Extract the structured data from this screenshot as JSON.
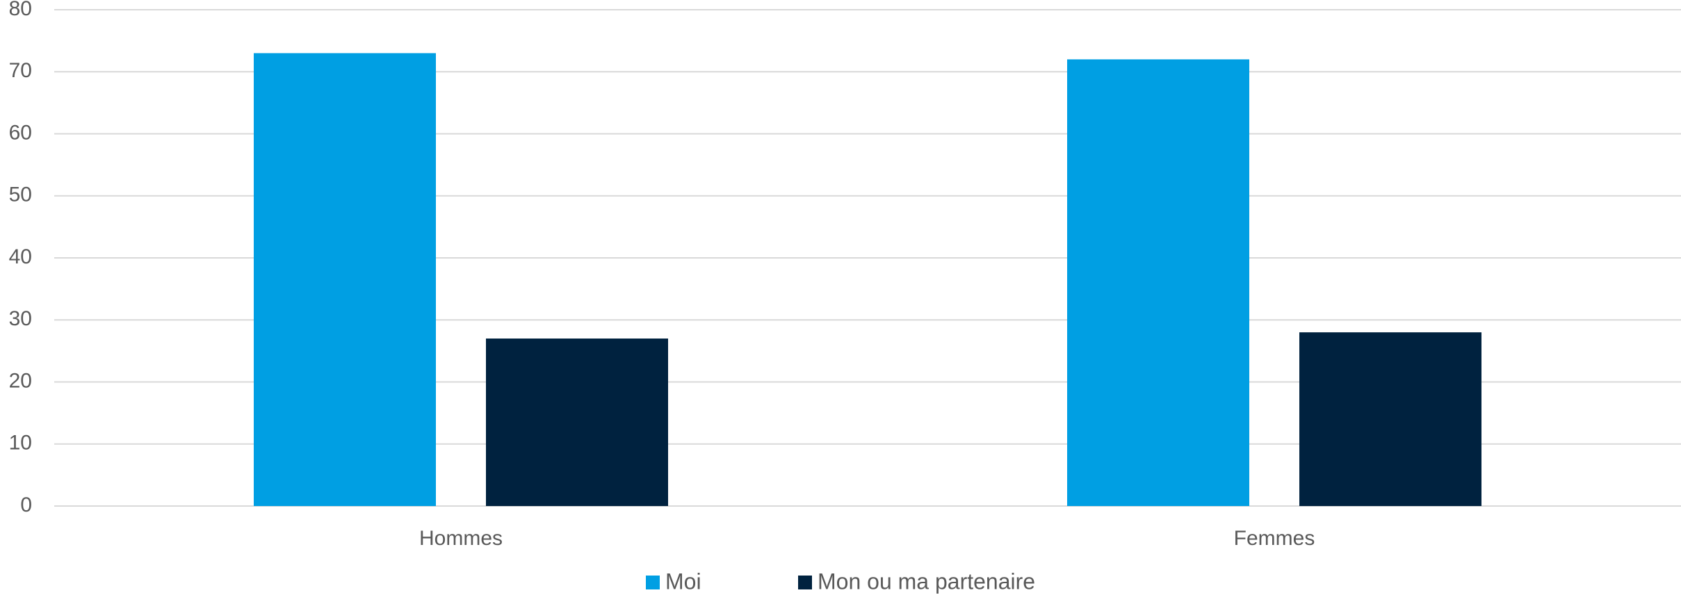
{
  "chart_data": {
    "type": "bar",
    "categories": [
      "Hommes",
      "Femmes"
    ],
    "series": [
      {
        "name": "Moi",
        "color": "#009FE3",
        "values": [
          73,
          72
        ]
      },
      {
        "name": "Mon ou ma partenaire",
        "color": "#00223F",
        "values": [
          27,
          28
        ]
      }
    ],
    "ylim": [
      0,
      80
    ],
    "yticks": [
      0,
      10,
      20,
      30,
      40,
      50,
      60,
      70,
      80
    ],
    "grid": true,
    "legend": "bottom",
    "title": "",
    "xlabel": "",
    "ylabel": ""
  }
}
